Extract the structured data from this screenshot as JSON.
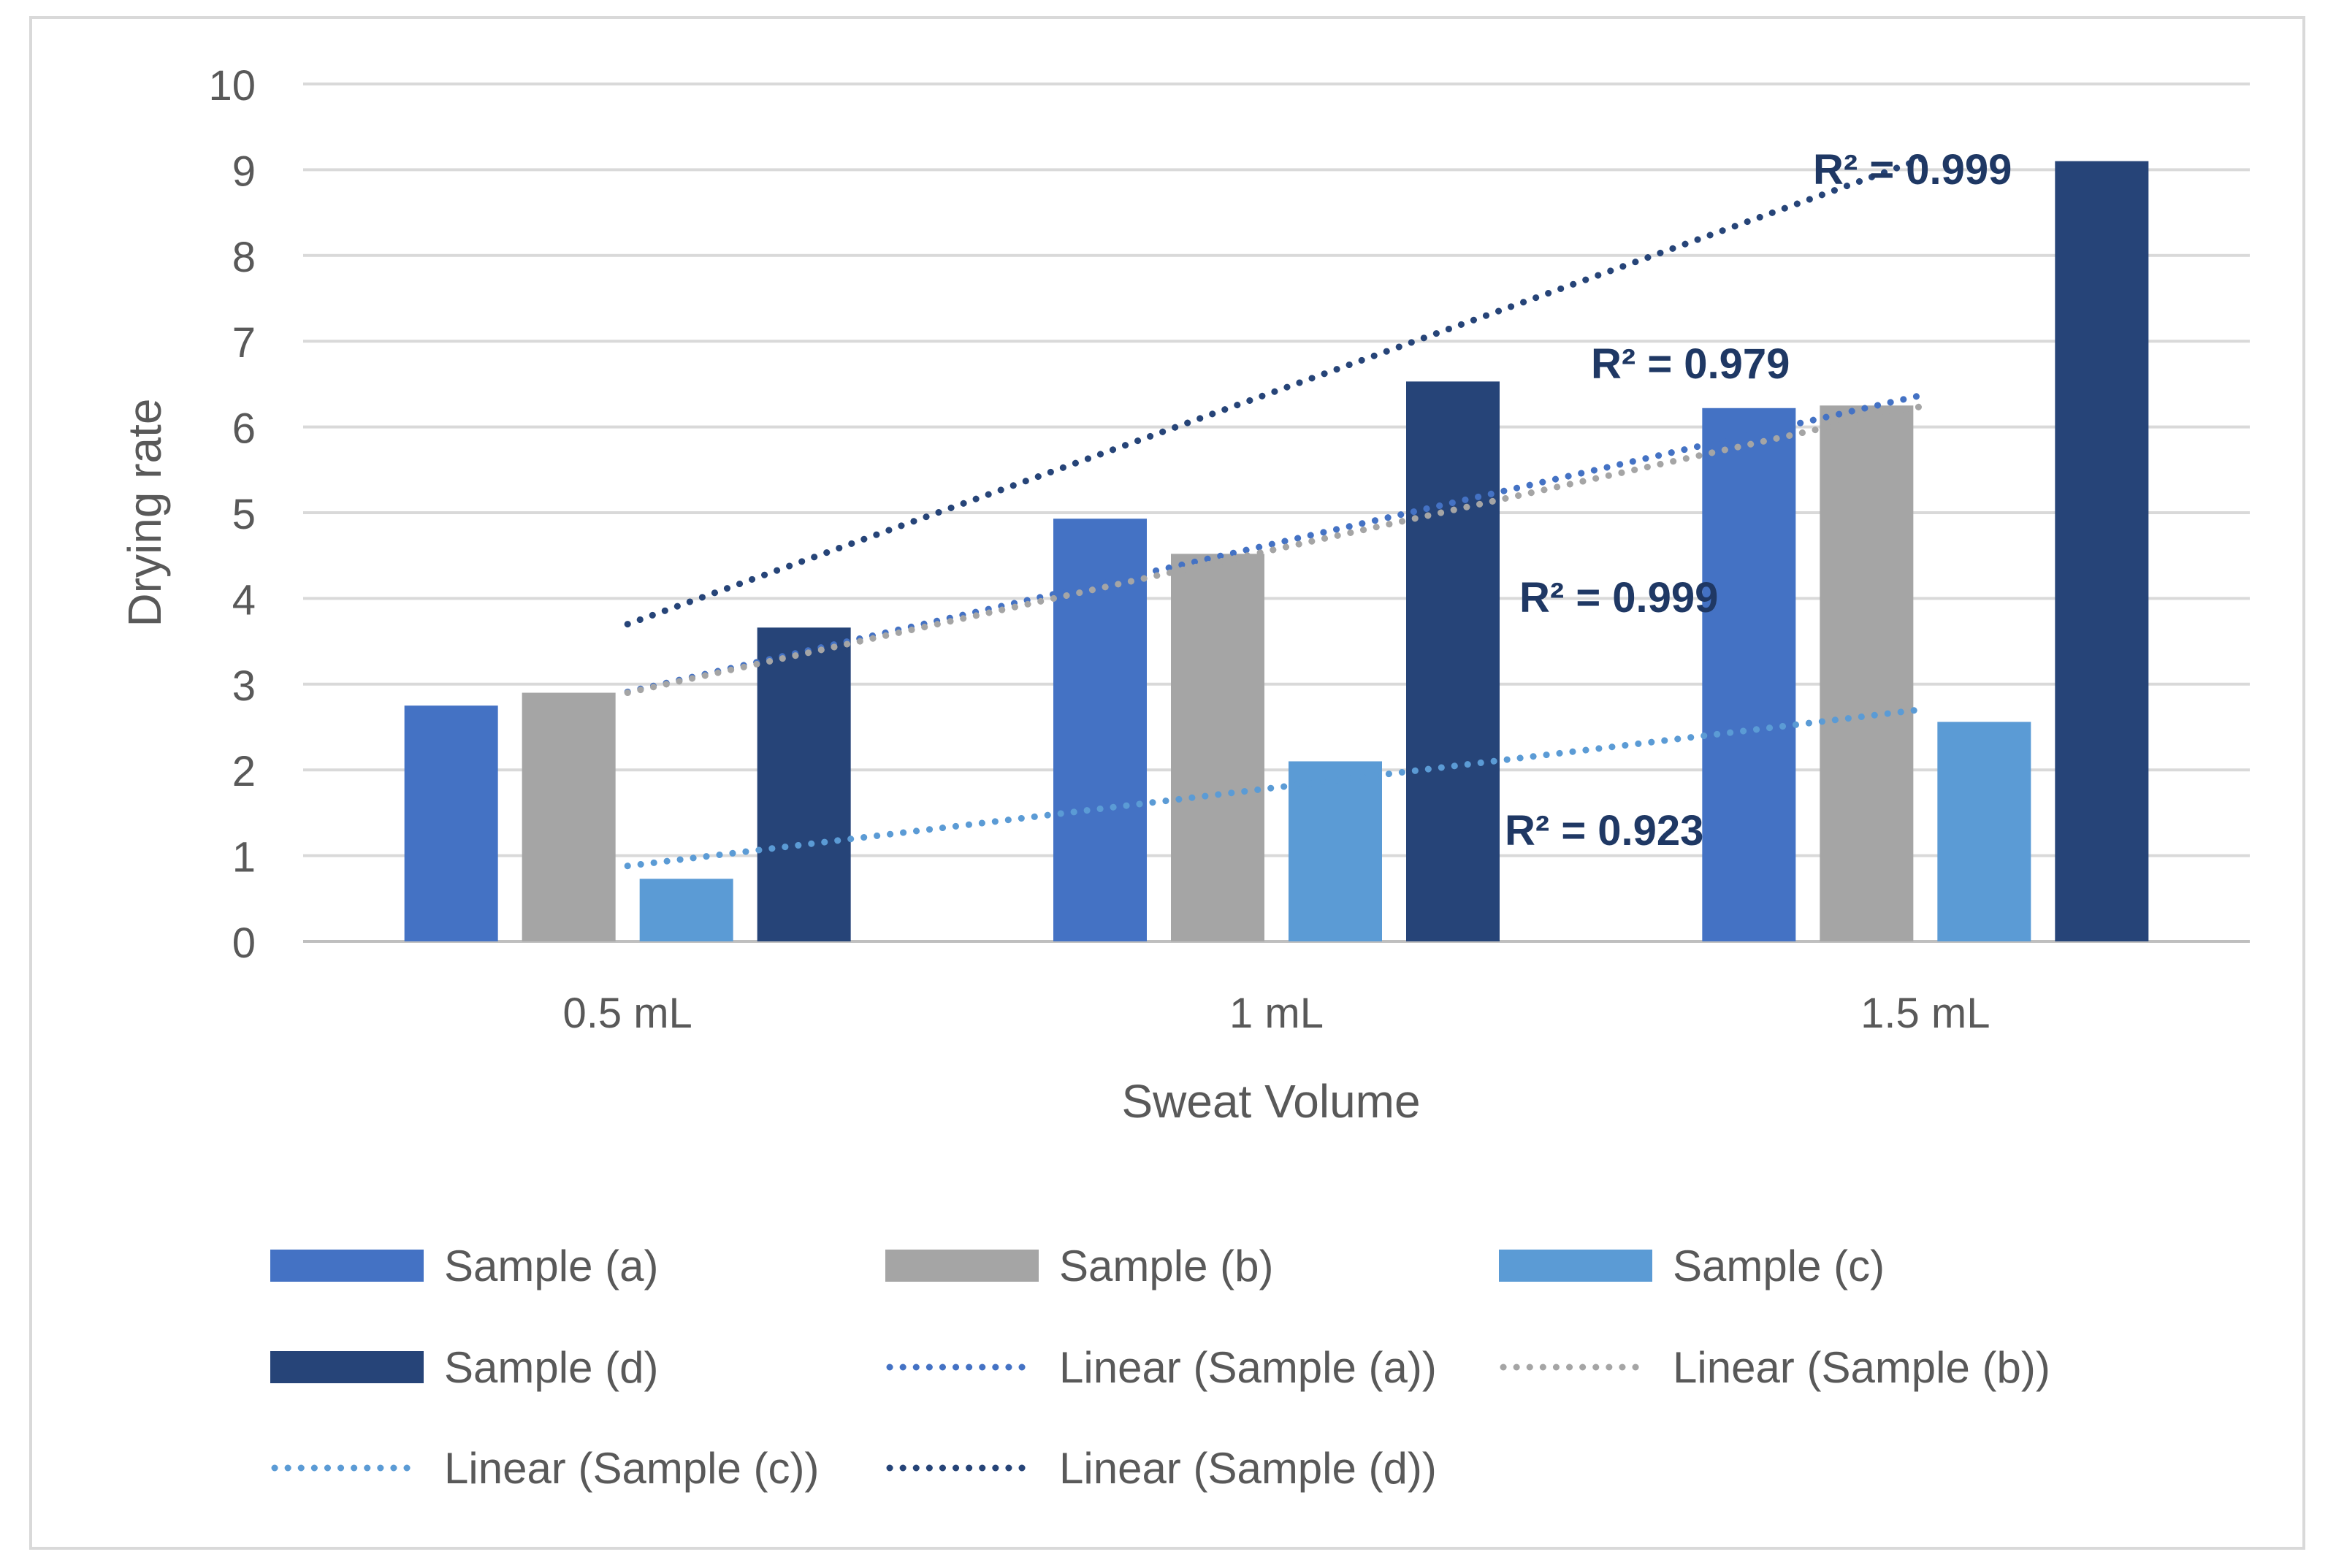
{
  "chart_data": {
    "type": "bar",
    "title": "",
    "xlabel": "Sweat Volume",
    "ylabel": "Drying rate",
    "categories": [
      "0.5 mL",
      "1 mL",
      "1.5 mL"
    ],
    "ylim": [
      0,
      10
    ],
    "yticks": [
      "0",
      "1",
      "2",
      "3",
      "4",
      "5",
      "6",
      "7",
      "8",
      "9",
      "10"
    ],
    "grid": true,
    "legend_position": "bottom",
    "series": [
      {
        "name": "Sample (a)",
        "values": [
          2.75,
          4.93,
          6.22
        ],
        "color": "#4472c4"
      },
      {
        "name": "Sample (b)",
        "values": [
          2.9,
          4.52,
          6.25
        ],
        "color": "#a5a5a5"
      },
      {
        "name": "Sample (c)",
        "values": [
          0.73,
          2.1,
          2.56
        ],
        "color": "#5b9bd5"
      },
      {
        "name": "Sample (d)",
        "values": [
          3.66,
          6.53,
          9.1
        ],
        "color": "#264478"
      }
    ],
    "trendlines": [
      {
        "name": "Linear (Sample (a))",
        "series": "Sample (a)",
        "start": 2.91,
        "end": 6.38,
        "r2_label": "R² = 0.979",
        "color": "#4472c4"
      },
      {
        "name": "Linear (Sample (b))",
        "series": "Sample (b)",
        "start": 2.9,
        "end": 6.25,
        "r2_label": "R² = 0.999",
        "color": "#a5a5a5"
      },
      {
        "name": "Linear (Sample (c))",
        "series": "Sample (c)",
        "start": 0.88,
        "end": 2.71,
        "r2_label": "R² = 0.923",
        "color": "#5b9bd5"
      },
      {
        "name": "Linear (Sample (d))",
        "series": "Sample (d)",
        "start": 3.7,
        "end": 9.14,
        "r2_label": "R² = 0.999",
        "color": "#264478"
      }
    ],
    "legend": [
      {
        "label": "Sample (a)",
        "kind": "bar",
        "color": "#4472c4"
      },
      {
        "label": "Sample (b)",
        "kind": "bar",
        "color": "#a5a5a5"
      },
      {
        "label": "Sample (c)",
        "kind": "bar",
        "color": "#5b9bd5"
      },
      {
        "label": "Sample (d)",
        "kind": "bar",
        "color": "#264478"
      },
      {
        "label": "Linear (Sample (a))",
        "kind": "line",
        "color": "#4472c4"
      },
      {
        "label": "Linear (Sample (b))",
        "kind": "line",
        "color": "#a5a5a5"
      },
      {
        "label": "Linear (Sample (c))",
        "kind": "line",
        "color": "#5b9bd5"
      },
      {
        "label": "Linear (Sample (d))",
        "kind": "line",
        "color": "#264478"
      }
    ]
  }
}
